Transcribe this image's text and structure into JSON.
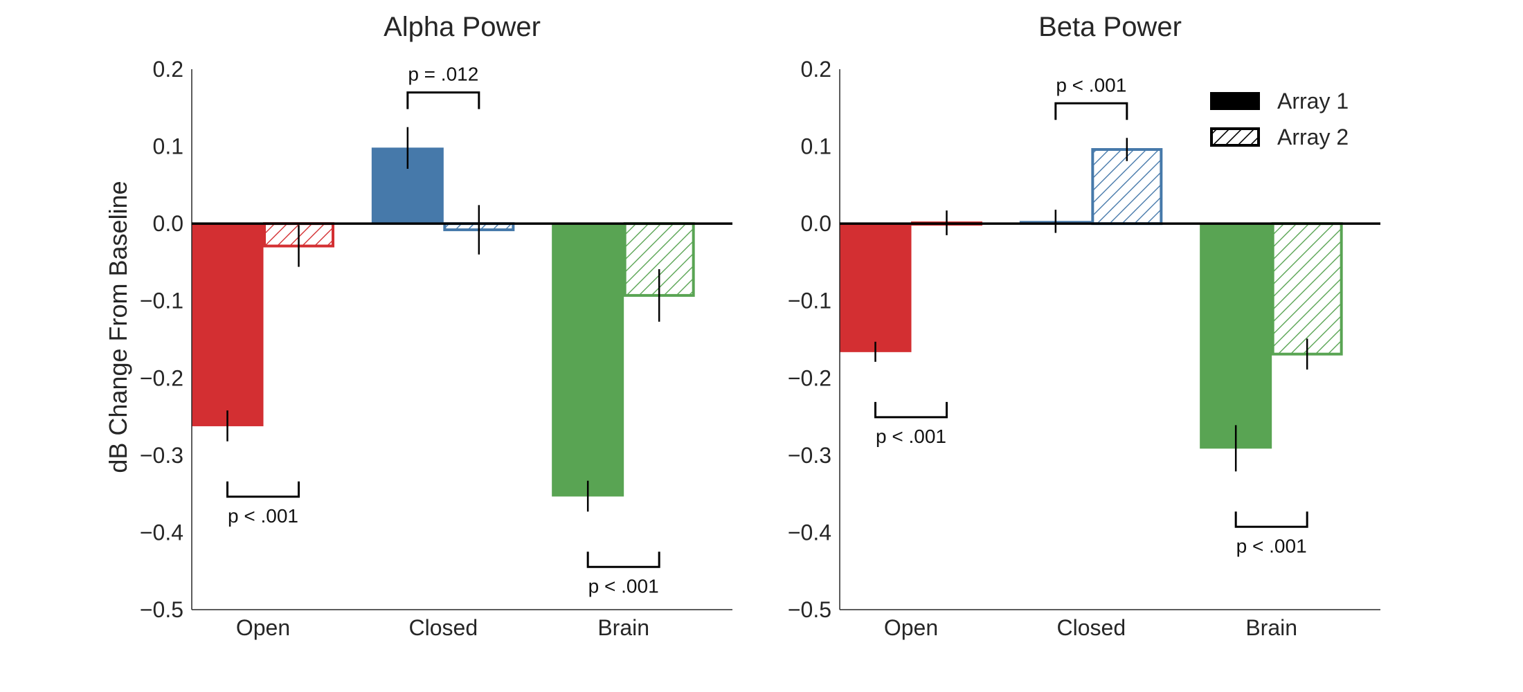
{
  "chart_data": [
    {
      "type": "bar",
      "title": "Alpha Power",
      "ylabel": "dB Change From Baseline",
      "xlabel": "",
      "categories": [
        "Open",
        "Closed",
        "Brain"
      ],
      "ylim": [
        -0.5,
        0.2
      ],
      "yticks": [
        "0.2",
        "0.1",
        "0.0",
        "−0.1",
        "−0.2",
        "−0.3",
        "−0.4",
        "−0.5"
      ],
      "ytick_values": [
        0.2,
        0.1,
        0.0,
        -0.1,
        -0.2,
        -0.3,
        -0.4,
        -0.5
      ],
      "grid": false,
      "series": [
        {
          "name": "Array 1",
          "style": "solid",
          "values": [
            -0.262,
            0.098,
            -0.353
          ],
          "errors": [
            0.02,
            0.027,
            0.02
          ]
        },
        {
          "name": "Array 2",
          "style": "hatched",
          "values": [
            -0.029,
            -0.008,
            -0.093
          ],
          "errors": [
            0.027,
            0.032,
            0.034
          ]
        }
      ],
      "significance": [
        {
          "category": "Open",
          "label": "p < .001",
          "position": "below"
        },
        {
          "category": "Closed",
          "label": "p = .012",
          "position": "above"
        },
        {
          "category": "Brain",
          "label": "p < .001",
          "position": "below"
        }
      ]
    },
    {
      "type": "bar",
      "title": "Beta Power",
      "ylabel": "",
      "xlabel": "",
      "categories": [
        "Open",
        "Closed",
        "Brain"
      ],
      "ylim": [
        -0.5,
        0.2
      ],
      "yticks": [
        "0.2",
        "0.1",
        "0.0",
        "−0.1",
        "−0.2",
        "−0.3",
        "−0.4",
        "−0.5"
      ],
      "ytick_values": [
        0.2,
        0.1,
        0.0,
        -0.1,
        -0.2,
        -0.3,
        -0.4,
        -0.5
      ],
      "grid": false,
      "legend": {
        "placement": "top-right",
        "entries": [
          "Array 1",
          "Array 2"
        ]
      },
      "series": [
        {
          "name": "Array 1",
          "style": "solid",
          "values": [
            -0.166,
            0.003,
            -0.291
          ],
          "errors": [
            0.013,
            0.015,
            0.03
          ]
        },
        {
          "name": "Array 2",
          "style": "hatched",
          "values": [
            0.001,
            0.096,
            -0.169
          ],
          "errors": [
            0.016,
            0.015,
            0.02
          ]
        }
      ],
      "significance": [
        {
          "category": "Open",
          "label": "p < .001",
          "position": "below"
        },
        {
          "category": "Closed",
          "label": "p < .001",
          "position": "above"
        },
        {
          "category": "Brain",
          "label": "p < .001",
          "position": "below"
        }
      ]
    }
  ],
  "colors": {
    "Open": "#d32f32",
    "Closed": "#4679aa",
    "Brain": "#59a453",
    "text": "#262626",
    "marks": "#000000"
  }
}
